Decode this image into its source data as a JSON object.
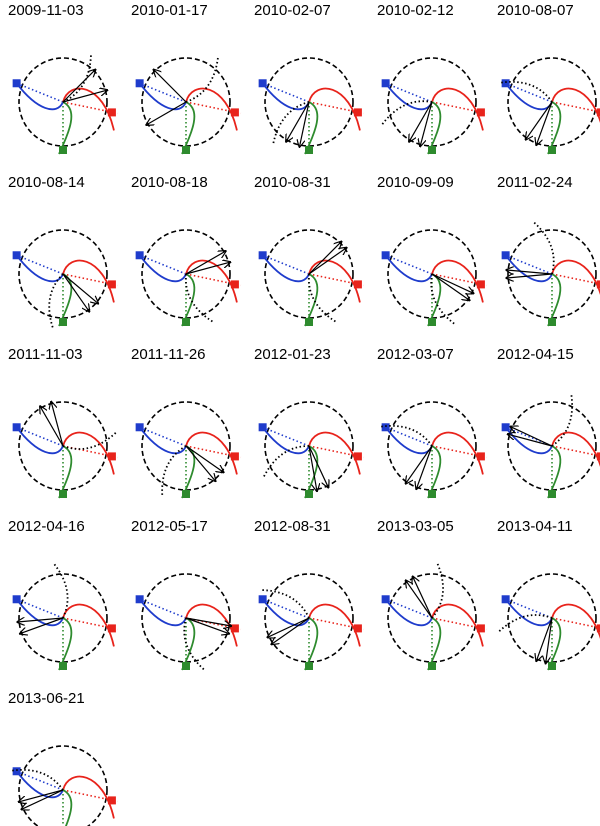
{
  "colors": {
    "blue": "#1f3ccc",
    "red": "#e8231b",
    "green": "#2e8b2e",
    "black": "#000000"
  },
  "panels": [
    {
      "date": "2009-11-03",
      "dotted_angle": 60,
      "arrows": [
        45,
        15
      ]
    },
    {
      "date": "2010-01-17",
      "dotted_angle": 55,
      "arrows": [
        135,
        210
      ]
    },
    {
      "date": "2010-02-07",
      "dotted_angle": 230,
      "arrows": [
        240,
        258
      ]
    },
    {
      "date": "2010-02-12",
      "dotted_angle": 205,
      "arrows": [
        240,
        255
      ]
    },
    {
      "date": "2010-08-07",
      "dotted_angle": 160,
      "arrows": [
        235,
        250
      ]
    },
    {
      "date": "2010-08-14",
      "dotted_angle": 260,
      "arrows": [
        305,
        320
      ]
    },
    {
      "date": "2010-08-18",
      "dotted_angle": 300,
      "arrows": [
        15,
        30
      ]
    },
    {
      "date": "2010-08-31",
      "dotted_angle": 300,
      "arrows": [
        35,
        45
      ]
    },
    {
      "date": "2010-09-09",
      "dotted_angle": 295,
      "arrows": [
        325,
        335
      ]
    },
    {
      "date": "2011-02-24",
      "dotted_angle": 110,
      "arrows": [
        175,
        185
      ]
    },
    {
      "date": "2011-11-03",
      "dotted_angle": 15,
      "arrows": [
        105,
        120
      ]
    },
    {
      "date": "2011-11-26",
      "dotted_angle": 245,
      "arrows": [
        310,
        325
      ]
    },
    {
      "date": "2012-01-23",
      "dotted_angle": 215,
      "arrows": [
        280,
        295
      ]
    },
    {
      "date": "2012-03-07",
      "dotted_angle": 160,
      "arrows": [
        235,
        250
      ]
    },
    {
      "date": "2012-04-15",
      "dotted_angle": 70,
      "arrows": [
        155,
        165
      ]
    },
    {
      "date": "2012-04-16",
      "dotted_angle": 100,
      "arrows": [
        185,
        200
      ]
    },
    {
      "date": "2012-05-17",
      "dotted_angle": 290,
      "arrows": [
        340,
        350
      ]
    },
    {
      "date": "2012-08-31",
      "dotted_angle": 150,
      "arrows": [
        205,
        215
      ]
    },
    {
      "date": "2013-03-05",
      "dotted_angle": 85,
      "arrows": [
        115,
        125
      ]
    },
    {
      "date": "2013-04-11",
      "dotted_angle": 195,
      "arrows": [
        250,
        262
      ]
    },
    {
      "date": "2013-06-21",
      "dotted_angle": 160,
      "arrows": [
        195,
        205
      ]
    }
  ]
}
